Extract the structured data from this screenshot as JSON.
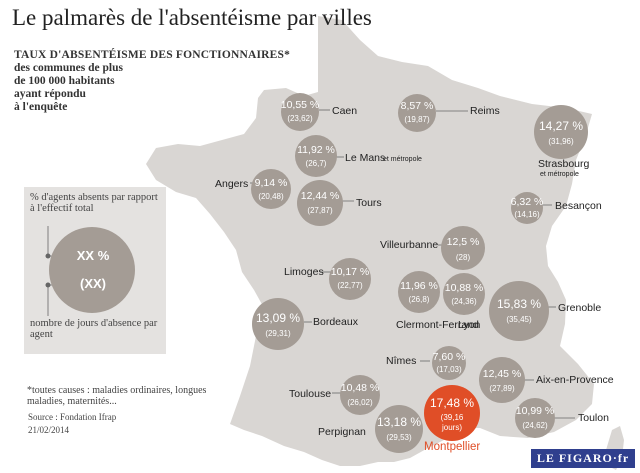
{
  "title": "Le palmarès de l'absentéisme par villes",
  "subtitle": {
    "heading": "TAUX D'ABSENTÉISME DES FONCTIONNAIRES*",
    "lines": [
      "des communes de plus",
      "de 100 000 habitants",
      "ayant répondu",
      "à l'enquête"
    ]
  },
  "legend": {
    "top_text": "% d'agents absents par rapport à l'effectif total",
    "rate_example": "XX %",
    "days_example": "(XX)",
    "bottom_text": "nombre de jours d'absence par agent"
  },
  "footnote": "*toutes causes : maladies ordinaires, longues maladies, maternités...",
  "source": "Source : Fondation Ifrap",
  "date": "21/02/2014",
  "logo": "LE FIGARO·fr",
  "colors": {
    "map": "#d9d6d3",
    "bubble": "#a49c95",
    "highlight": "#e04e27",
    "legend_box": "#e4e2e0"
  },
  "cities": [
    {
      "name": "Caen",
      "rate": "10,55 %",
      "days": "(23,62)"
    },
    {
      "name": "Reims",
      "rate": "8,57 %",
      "days": "(19,87)"
    },
    {
      "name": "Strasbourg",
      "sub": "et métropole",
      "rate": "14,27 %",
      "days": "(31,96)"
    },
    {
      "name": "Le Mans",
      "sub": "et métropole",
      "rate": "11,92 %",
      "days": "(26,7)"
    },
    {
      "name": "Angers",
      "rate": "9,14 %",
      "days": "(20,48)"
    },
    {
      "name": "Tours",
      "rate": "12,44 %",
      "days": "(27,87)"
    },
    {
      "name": "Besançon",
      "rate": "6,32 %",
      "days": "(14,16)"
    },
    {
      "name": "Villeurbanne",
      "rate": "12,5 %",
      "days": "(28)"
    },
    {
      "name": "Limoges",
      "rate": "10,17 %",
      "days": "(22,77)"
    },
    {
      "name": "Clermont-Ferrand",
      "rate": "11,96 %",
      "days": "(26,8)"
    },
    {
      "name": "Lyon",
      "rate": "10,88 %",
      "days": "(24,36)"
    },
    {
      "name": "Grenoble",
      "rate": "15,83 %",
      "days": "(35,45)"
    },
    {
      "name": "Bordeaux",
      "rate": "13,09 %",
      "days": "(29,31)"
    },
    {
      "name": "Nîmes",
      "rate": "7,60 %",
      "days": "(17,03)"
    },
    {
      "name": "Aix-en-Provence",
      "rate": "12,45 %",
      "days": "(27,89)"
    },
    {
      "name": "Toulouse",
      "rate": "10,48 %",
      "days": "(26,02)"
    },
    {
      "name": "Montpellier",
      "rate": "17,48 %",
      "days": "(39,16",
      "days_unit": "jours)"
    },
    {
      "name": "Toulon",
      "rate": "10,99 %",
      "days": "(24,62)"
    },
    {
      "name": "Perpignan",
      "rate": "13,18 %",
      "days": "(29,53)"
    }
  ]
}
